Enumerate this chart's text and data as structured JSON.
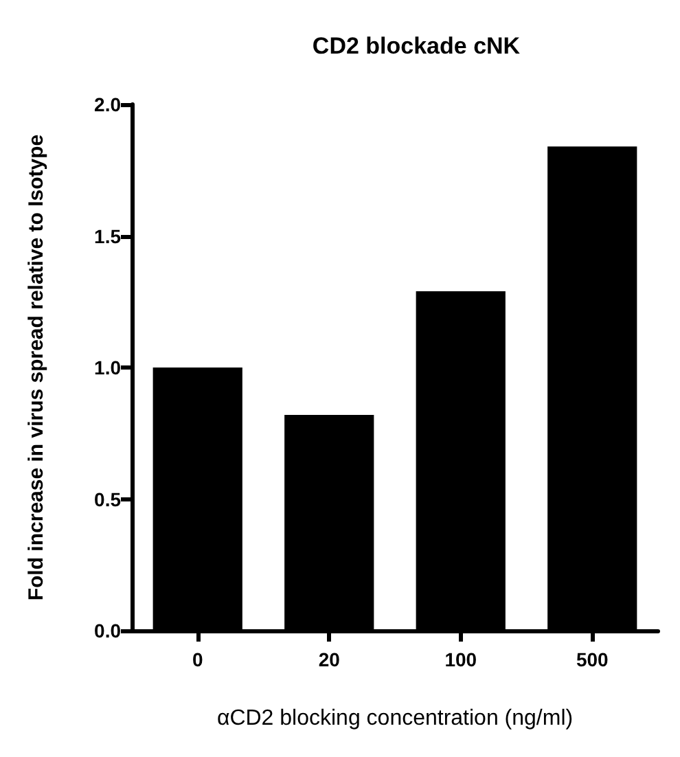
{
  "chart_data": {
    "type": "bar",
    "title": "CD2 blockade cNK",
    "xlabel": "αCD2 blocking concentration (ng/ml)",
    "ylabel": "Fold increase in virus spread relative to Isotype",
    "categories": [
      "0",
      "20",
      "100",
      "500"
    ],
    "values": [
      1.0,
      0.82,
      1.29,
      1.84
    ],
    "color": "#000000",
    "ylim": [
      0,
      2
    ],
    "yticks": [
      {
        "value": 0,
        "label": "0.0"
      },
      {
        "value": 0.5,
        "label": "0.5"
      },
      {
        "value": 1,
        "label": "1.0"
      },
      {
        "value": 1.5,
        "label": "1.5"
      },
      {
        "value": 2,
        "label": "2.0"
      }
    ],
    "grid": false
  }
}
